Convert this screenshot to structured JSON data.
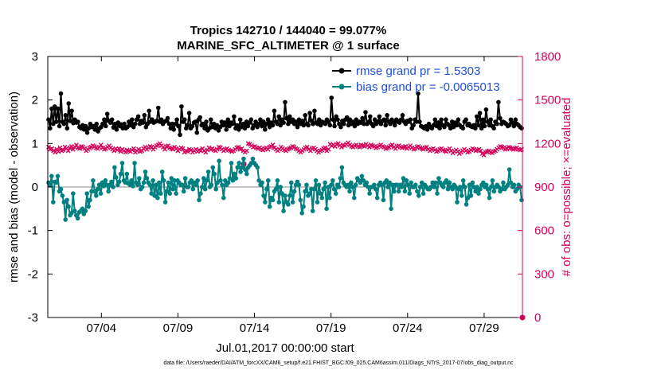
{
  "chart_data": {
    "type": "line",
    "title_line1": "Tropics 142710 / 144040 = 99.077%",
    "title_line2": "MARINE_SFC_ALTIMETER @ 1 surface",
    "xlabel": "Jul.01,2017 00:00:00 start",
    "ylabel_left": "rmse and bias (model - observation)",
    "ylabel_right": "# of obs: o=possible; ×=evaluated",
    "footnote": "data file: /Users/raeder/DAI/ATM_forcXX/CAM6_setup/f.e21.FHIST_BGC.f09_025.CAM6assim.011/Diags_NTrS_2017-07/obs_diag_output.nc",
    "x_range": [
      0.5,
      31.5
    ],
    "x_ticks": [
      {
        "value": 4,
        "label": "07/04"
      },
      {
        "value": 9,
        "label": "07/09"
      },
      {
        "value": 14,
        "label": "07/14"
      },
      {
        "value": 19,
        "label": "07/19"
      },
      {
        "value": 24,
        "label": "07/24"
      },
      {
        "value": 29,
        "label": "07/29"
      }
    ],
    "ylim_left": [
      -3,
      3
    ],
    "yticks_left": [
      -3,
      -2,
      -1,
      0,
      1,
      2,
      3
    ],
    "ylim_right": [
      0,
      1800
    ],
    "yticks_right": [
      0,
      300,
      600,
      900,
      1200,
      1500,
      1800
    ],
    "legend": [
      {
        "label": "rmse grand pr = 1.5303",
        "color": "#000000"
      },
      {
        "label": "bias grand pr = -0.0065013",
        "color": "#008080"
      }
    ],
    "colors": {
      "rmse": "#000000",
      "bias": "#008080",
      "obs": "#d6005a",
      "text_blue": "#1f4fd8",
      "zero_line": "#b0b0b0"
    },
    "series": [
      {
        "name": "rmse",
        "values": [
          1.55,
          1.35,
          1.8,
          1.45,
          1.85,
          1.5,
          1.8,
          1.4,
          2.15,
          1.5,
          1.45,
          1.65,
          1.35,
          1.92,
          1.52,
          1.75,
          1.47,
          1.55,
          1.48,
          1.5,
          1.38,
          1.35,
          1.42,
          1.32,
          1.4,
          1.25,
          1.35,
          1.45,
          1.38,
          1.4,
          1.32,
          1.45,
          1.28,
          1.35,
          1.38,
          1.45,
          1.55,
          1.4,
          1.68,
          1.52,
          1.48,
          1.55,
          1.37,
          1.45,
          1.32,
          1.48,
          1.4,
          1.44,
          1.35,
          1.45,
          1.35,
          1.38,
          1.5,
          1.42,
          1.55,
          1.38,
          1.45,
          1.55,
          1.62,
          1.45,
          1.52,
          1.48,
          1.65,
          1.38,
          1.45,
          1.75,
          1.5,
          1.55,
          1.48,
          1.5,
          1.52,
          1.82,
          1.5,
          1.55,
          1.45,
          1.5,
          1.52,
          1.58,
          1.45,
          1.35,
          1.45,
          1.32,
          1.45,
          1.55,
          1.4,
          1.2,
          1.85,
          1.5,
          1.55,
          1.35,
          1.42,
          1.7,
          1.35,
          1.4,
          1.48,
          1.5,
          1.25,
          1.55,
          1.6,
          1.42,
          1.45,
          1.35,
          1.5,
          1.3,
          1.35,
          1.55,
          1.38,
          1.45,
          1.35,
          1.42,
          1.3,
          1.38,
          1.5,
          1.42,
          1.48,
          1.32,
          1.55,
          1.4,
          1.48,
          1.45,
          1.62,
          1.35,
          1.42,
          1.32,
          1.55,
          1.38,
          1.45,
          1.35,
          1.5,
          1.4,
          1.48,
          1.55,
          1.35,
          1.42,
          1.5,
          1.38,
          1.45,
          1.55,
          1.4,
          1.5,
          1.32,
          1.45,
          1.55,
          1.38,
          1.48,
          1.42,
          1.75,
          1.5,
          1.45,
          1.62,
          1.42,
          1.55,
          1.48,
          1.95,
          1.58,
          1.45,
          1.62,
          1.5,
          1.55,
          1.45,
          1.5,
          1.38,
          1.55,
          1.45,
          1.52,
          1.42,
          1.65,
          1.45,
          1.42,
          1.7,
          1.52,
          1.45,
          1.75,
          1.48,
          1.45,
          1.55,
          1.42,
          1.5,
          1.48,
          1.45,
          1.55,
          1.5,
          1.42,
          2.05,
          1.55,
          1.4,
          1.62,
          1.55,
          1.45,
          1.38,
          1.52,
          1.45,
          1.55,
          1.6,
          1.42,
          1.55,
          1.45,
          1.5,
          1.4,
          1.55,
          1.45,
          1.5,
          1.48,
          1.58,
          1.45,
          1.72,
          1.45,
          1.5,
          1.62,
          1.45,
          1.4,
          1.55,
          1.45,
          1.5,
          1.62,
          1.45,
          1.52,
          1.55,
          1.42,
          1.65,
          1.5,
          1.45,
          1.55,
          1.5,
          1.42,
          1.55,
          1.5,
          1.48,
          1.55,
          1.65,
          1.5,
          1.45,
          1.52,
          1.5,
          1.55,
          1.35,
          1.42,
          1.55,
          1.5,
          2.15,
          1.5,
          1.4,
          1.38,
          1.35,
          1.4,
          1.32,
          1.45,
          1.38,
          1.35,
          1.42,
          1.55,
          1.4,
          1.48,
          1.35,
          1.55,
          1.42,
          1.38,
          1.55,
          1.45,
          1.42,
          1.35,
          1.5,
          1.38,
          1.48,
          1.42,
          1.55,
          1.42,
          1.38,
          1.35,
          1.5,
          1.55,
          1.42,
          1.45,
          1.4,
          1.38,
          1.42,
          1.35,
          1.62,
          1.42,
          1.7,
          1.35,
          1.55,
          1.4,
          1.78,
          1.5,
          1.42,
          1.55,
          1.4,
          1.35,
          1.5,
          1.45,
          1.95,
          1.58,
          1.45,
          1.5,
          1.48,
          1.45,
          1.4,
          1.42,
          1.55,
          1.48,
          1.4,
          1.55,
          1.45,
          1.42,
          1.38,
          1.35
        ]
      },
      {
        "name": "bias",
        "values": [
          0.1,
          0.05,
          0.25,
          -0.35,
          0.12,
          0.1,
          0.25,
          -0.1,
          -0.05,
          -0.2,
          -0.35,
          -0.75,
          -0.3,
          -0.45,
          -0.65,
          -0.6,
          -0.15,
          -0.55,
          -0.65,
          -0.72,
          -0.58,
          -0.55,
          -0.5,
          -0.62,
          -0.55,
          -0.15,
          -0.45,
          -0.3,
          -0.1,
          0.15,
          -0.1,
          -0.2,
          -0.05,
          0.05,
          -0.15,
          0.1,
          0.02,
          0.15,
          0.05,
          -0.1,
          0.05,
          0.12,
          0.0,
          0.45,
          0.22,
          0.05,
          0.12,
          0.3,
          0.55,
          0.15,
          0.1,
          0.3,
          0.08,
          0.05,
          0.15,
          0.02,
          0.55,
          0.1,
          0.05,
          0.2,
          -0.05,
          0.0,
          0.1,
          0.35,
          0.2,
          0.1,
          0.05,
          -0.15,
          0.15,
          -0.2,
          0.05,
          -0.25,
          0.1,
          -0.15,
          0.35,
          0.15,
          -0.35,
          -0.1,
          0.1,
          -0.15,
          0.2,
          -0.05,
          0.15,
          -0.15,
          0.15,
          0.1,
          0.05,
          0.05,
          -0.1,
          0.2,
          0.0,
          0.0,
          0.1,
          0.15,
          -0.05,
          0.1,
          0.05,
          0.15,
          -0.3,
          -0.15,
          0.0,
          0.2,
          -0.05,
          0.15,
          0.35,
          0.0,
          0.05,
          0.45,
          0.3,
          -0.05,
          0.1,
          0.6,
          0.15,
          0.05,
          -0.25,
          0.15,
          0.05,
          0.1,
          0.2,
          0.55,
          0.15,
          0.3,
          0.2,
          0.45,
          0.55,
          0.35,
          0.45,
          0.65,
          0.4,
          0.3,
          0.45,
          0.5,
          0.55,
          0.65,
          0.55,
          0.5,
          0.45,
          0.15,
          0.05,
          0.1,
          -0.2,
          -0.35,
          -0.05,
          0.15,
          -0.45,
          -0.25,
          -0.3,
          -0.1,
          -0.05,
          0.15,
          -0.35,
          0.0,
          -0.15,
          -0.55,
          -0.2,
          -0.35,
          -0.4,
          -0.2,
          0.1,
          -0.35,
          -0.1,
          0.05,
          0.12,
          0.05,
          -0.3,
          -0.6,
          -0.45,
          -0.1,
          0.05,
          -0.2,
          -0.15,
          -0.05,
          -0.55,
          -0.05,
          0.15,
          -0.35,
          0.05,
          -0.15,
          -0.25,
          -0.05,
          0.1,
          -0.5,
          0.0,
          -0.25,
          0.05,
          0.15,
          -0.05,
          -0.15,
          0.05,
          0.0,
          0.2,
          0.45,
          0.1,
          0.05,
          0.0,
          0.05,
          -0.1,
          0.1,
          0.0,
          -0.25,
          0.05,
          0.2,
          0.15,
          0.1,
          0.25,
          0.15,
          0.05,
          0.1,
          0.0,
          -0.15,
          0.0,
          0.0,
          0.05,
          -0.05,
          -0.25,
          0.05,
          0.1,
          0.05,
          -0.3,
          0.1,
          0.15,
          0.0,
          0.1,
          -0.5,
          0.05,
          -0.1,
          0.05,
          0.05,
          -0.1,
          0.05,
          0.0,
          0.2,
          -0.1,
          0.15,
          0.05,
          -0.15,
          0.1,
          0.0,
          0.0,
          0.05,
          -0.1,
          -0.2,
          0.0,
          0.1,
          -0.15,
          0.05,
          0.0,
          -0.05,
          -0.05,
          0.0,
          0.1,
          0.0,
          0.1,
          -0.15,
          0.2,
          0.1,
          0.05,
          0.0,
          0.1,
          0.15,
          -0.05,
          0.1,
          0.0,
          -0.05,
          0.05,
          0.0,
          -0.35,
          -0.05,
          0.0,
          -0.2,
          0.15,
          0.0,
          -0.4,
          -0.25,
          0.05,
          -0.2,
          0.1,
          0.0,
          -0.1,
          0.0,
          -0.15,
          -0.05,
          0.05,
          0.1,
          0.0,
          0.05,
          -0.05,
          -0.25,
          0.0,
          0.15,
          -0.1,
          0.0,
          0.05,
          0.0,
          -0.1,
          -0.05,
          0.1,
          -0.05,
          0.0,
          0.05,
          0.4,
          0.1,
          0.0,
          0.05,
          -0.1,
          -0.05,
          0.05,
          0.0,
          -0.3
        ]
      },
      {
        "name": "obs_evaluated",
        "values": [
          1175,
          1160,
          1165,
          1150,
          1140,
          1160,
          1145,
          1170,
          1150,
          1155,
          1175,
          1165,
          1150,
          1170,
          1180,
          1160,
          1175,
          1190,
          1170,
          1165,
          1180,
          1175,
          1165,
          1150,
          1160,
          1170,
          1175,
          1185,
          1180,
          1170,
          1165,
          1175,
          1190,
          1170,
          1160,
          1165,
          1175,
          1185,
          1170,
          1160,
          1150,
          1165,
          1155,
          1165,
          1145,
          1160,
          1150,
          1140,
          1155,
          1150,
          1145,
          1155,
          1165,
          1140,
          1150,
          1160,
          1145,
          1150,
          1165,
          1175,
          1160,
          1170,
          1180,
          1175,
          1160,
          1175,
          1185,
          1190,
          1200,
          1185,
          1175,
          1160,
          1180,
          1185,
          1170,
          1165,
          1160,
          1175,
          1165,
          1150,
          1160,
          1170,
          1165,
          1140,
          1150,
          1145,
          1160,
          1155,
          1140,
          1150,
          1160,
          1145,
          1155,
          1150,
          1165,
          1150,
          1140,
          1155,
          1170,
          1160,
          1165,
          1155,
          1150,
          1160,
          1175,
          1170,
          1160,
          1150,
          1160,
          1165,
          1155,
          1150,
          1145,
          1150,
          1160,
          1170,
          1175,
          1160,
          1165,
          1150,
          1140,
          1150,
          1200,
          1195,
          1185,
          1175,
          1180,
          1170,
          1165,
          1170,
          1160,
          1155,
          1165,
          1170,
          1160,
          1175,
          1180,
          1190,
          1170,
          1160,
          1150,
          1160,
          1175,
          1165,
          1155,
          1150,
          1160,
          1165,
          1170,
          1180,
          1175,
          1165,
          1160,
          1150,
          1140,
          1150,
          1160,
          1170,
          1175,
          1160,
          1150,
          1165,
          1170,
          1160,
          1150,
          1140,
          1150,
          1155,
          1165,
          1170,
          1150,
          1160,
          1195,
          1185,
          1190,
          1180,
          1195,
          1200,
          1185,
          1175,
          1190,
          1185,
          1195,
          1205,
          1190,
          1180,
          1175,
          1185,
          1190,
          1180,
          1175,
          1190,
          1185,
          1180,
          1195,
          1185,
          1175,
          1190,
          1185,
          1180,
          1170,
          1175,
          1185,
          1190,
          1180,
          1175,
          1165,
          1170,
          1175,
          1185,
          1190,
          1175,
          1165,
          1180,
          1185,
          1175,
          1170,
          1175,
          1180,
          1165,
          1175,
          1185,
          1170,
          1160,
          1165,
          1175,
          1180,
          1170,
          1165,
          1160,
          1170,
          1175,
          1160,
          1150,
          1160,
          1165,
          1155,
          1145,
          1150,
          1160,
          1165,
          1155,
          1150,
          1145,
          1155,
          1165,
          1150,
          1135,
          1145,
          1155,
          1145,
          1130,
          1140,
          1150,
          1160,
          1150,
          1140,
          1145,
          1155,
          1165,
          1160,
          1150,
          1155,
          1160,
          1150,
          1130,
          1120,
          1140,
          1145,
          1150,
          1140,
          1135,
          1145,
          1150,
          1160,
          1170,
          1180,
          1175,
          1170,
          1160,
          1165,
          1175,
          1170,
          1165,
          1160,
          1165,
          1170,
          1160,
          1155,
          1160
        ]
      }
    ],
    "obs_extra_points": [
      {
        "x": 13.3,
        "y": 1058
      },
      {
        "x": 31.5,
        "y": 0
      }
    ]
  }
}
